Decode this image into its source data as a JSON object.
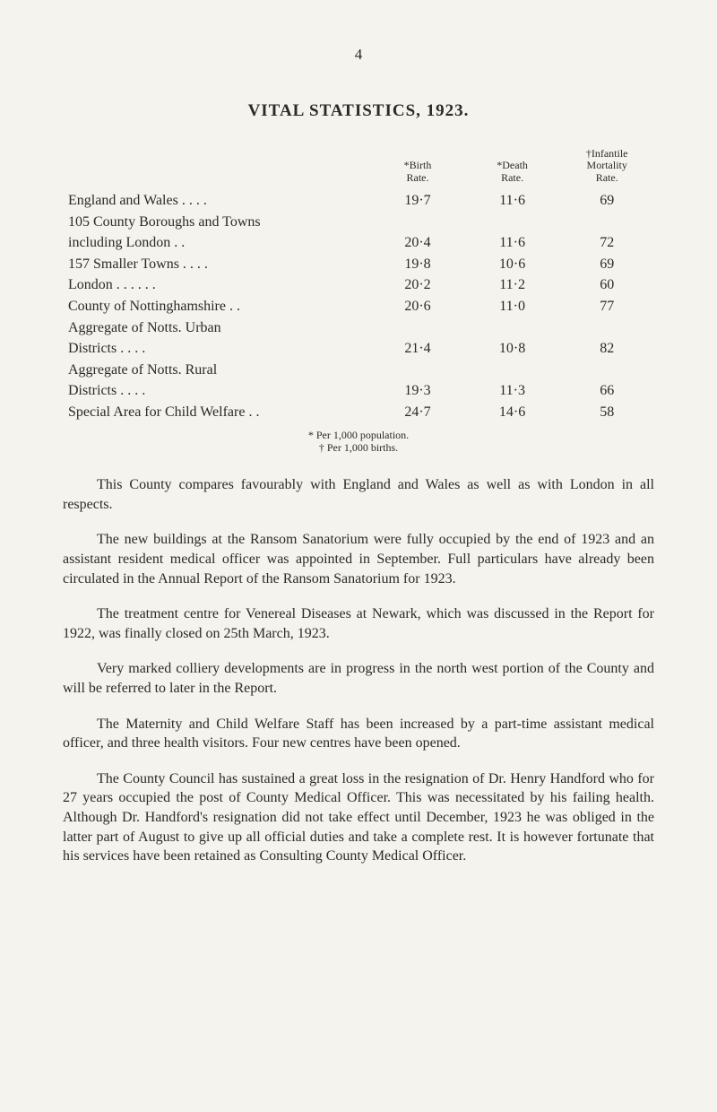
{
  "page_number": "4",
  "title": "VITAL STATISTICS, 1923.",
  "table": {
    "headers": {
      "birth": "*Birth\nRate.",
      "death": "*Death\nRate.",
      "mortality": "†Infantile\nMortality\nRate."
    },
    "rows": [
      {
        "label": "England and Wales . .            . .",
        "indent": false,
        "birth": "19·7",
        "death": "11·6",
        "mortality": "69"
      },
      {
        "label": "105 County Boroughs and Towns",
        "indent": false,
        "birth": "",
        "death": "",
        "mortality": ""
      },
      {
        "label": "including London            . .",
        "indent": true,
        "birth": "20·4",
        "death": "11·6",
        "mortality": "72"
      },
      {
        "label": "157 Smaller Towns   . .        . .",
        "indent": false,
        "birth": "19·8",
        "death": "10·6",
        "mortality": "69"
      },
      {
        "label": "London        . .            . .            . .",
        "indent": false,
        "birth": "20·2",
        "death": "11·2",
        "mortality": "60"
      },
      {
        "label": "County of Nottinghamshire   . .",
        "indent": false,
        "birth": "20·6",
        "death": "11·0",
        "mortality": "77"
      },
      {
        "label": "Aggregate  of  Notts.  Urban",
        "indent": false,
        "birth": "",
        "death": "",
        "mortality": ""
      },
      {
        "label": "Districts            . .            . .",
        "indent": true,
        "birth": "21·4",
        "death": "10·8",
        "mortality": "82"
      },
      {
        "label": "Aggregate  of  Notts.   Rural",
        "indent": false,
        "birth": "",
        "death": "",
        "mortality": ""
      },
      {
        "label": "Districts             . .          . .",
        "indent": true,
        "birth": "19·3",
        "death": "11·3",
        "mortality": "66"
      },
      {
        "label": "Special Area for Child Welfare . .",
        "indent": false,
        "birth": "24·7",
        "death": "14·6",
        "mortality": "58"
      }
    ]
  },
  "footnote_a": "* Per 1,000 population.",
  "footnote_b": "† Per 1,000 births.",
  "paragraphs": [
    "This County compares favourably with England and Wales as well as with London in all respects.",
    "The new buildings at the Ransom Sanatorium were fully occupied by the end of 1923 and an assistant resident medical officer was appointed in September. Full particulars have already been circulated in the Annual Report of the Ransom Sanatorium for 1923.",
    "The treatment centre for Venereal Diseases at Newark, which was discussed in the Report for 1922, was finally closed on 25th March, 1923.",
    "Very marked colliery developments are in progress in the north west portion of the County and will be referred to later in the Report.",
    "The Maternity and Child Welfare Staff has been increased by a part-time assistant medical officer, and three health visitors. Four new centres have been opened.",
    "The County Council has sustained a great loss in the resignation of Dr. Henry Handford who for 27 years occupied the post of County Medical Officer. This was necessitated by his failing health. Although Dr. Handford's resignation did not take effect until December, 1923 he was obliged in the latter part of August to give up all official duties and take a complete rest. It is however fortunate that his services have been retained as Consulting County Medical Officer."
  ]
}
